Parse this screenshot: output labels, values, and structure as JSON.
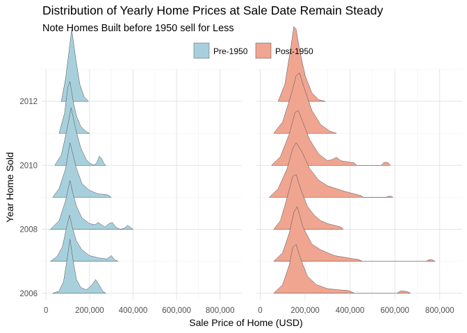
{
  "chart_data": {
    "type": "ridgeline",
    "title": "Distribution of Yearly Home Prices at Sale Date Remain Steady",
    "subtitle": "Note Homes Built before 1950 sell for Less",
    "xlabel": "Sale Price of Home (USD)",
    "ylabel": "Year Home Sold",
    "legend": {
      "position": "top",
      "title": ""
    },
    "facets": [
      "Pre-1950",
      "Post-1950"
    ],
    "x_ticks": [
      0,
      200000,
      400000,
      600000,
      800000
    ],
    "x_tick_labels": [
      "0",
      "200,000",
      "400,000",
      "600,000",
      "800,000"
    ],
    "xlim": [
      -20000,
      900000
    ],
    "y_ticks": [
      2006,
      2008,
      2010,
      2012
    ],
    "ylim": [
      2005.8,
      2013.0
    ],
    "grid": true,
    "colors": {
      "Pre-1950": "#A7D0DC",
      "Post-1950": "#F0A591",
      "outline": "#4d4d4d"
    },
    "series": [
      {
        "name": "Pre-1950",
        "distributions": [
          {
            "year": 2006,
            "x": [
              30000,
              60000,
              80000,
              95000,
              110000,
              125000,
              140000,
              160000,
              185000,
              210000,
              228000,
              245000,
              260000,
              275000
            ],
            "d": [
              0,
              0.04,
              0.2,
              0.55,
              0.94,
              0.55,
              0.24,
              0.1,
              0.06,
              0.14,
              0.24,
              0.14,
              0.04,
              0
            ]
          },
          {
            "year": 2007,
            "x": [
              20000,
              50000,
              75000,
              95000,
              108000,
              120000,
              140000,
              165000,
              200000,
              240000,
              280000,
              300000,
              315000,
              330000
            ],
            "d": [
              0,
              0.08,
              0.25,
              0.6,
              0.8,
              0.6,
              0.35,
              0.2,
              0.1,
              0.06,
              0.04,
              0.1,
              0.03,
              0
            ]
          },
          {
            "year": 2008,
            "x": [
              20000,
              60000,
              90000,
              110000,
              125000,
              140000,
              165000,
              200000,
              225000,
              240000,
              255000,
              270000,
              290000,
              305000,
              320000,
              340000,
              360000,
              375000,
              390000,
              400000
            ],
            "d": [
              0,
              0.15,
              0.5,
              0.85,
              0.6,
              0.4,
              0.2,
              0.1,
              0.08,
              0.12,
              0.08,
              0.04,
              0.1,
              0.12,
              0.04,
              0,
              0.02,
              0.07,
              0.03,
              0
            ]
          },
          {
            "year": 2009,
            "x": [
              30000,
              60000,
              90000,
              110000,
              125000,
              140000,
              165000,
              200000,
              240000,
              270000,
              285000,
              300000
            ],
            "d": [
              0,
              0.15,
              0.5,
              0.95,
              0.72,
              0.5,
              0.24,
              0.12,
              0.06,
              0.05,
              0.04,
              0
            ]
          },
          {
            "year": 2010,
            "x": [
              40000,
              70000,
              95000,
              115000,
              135000,
              160000,
              185000,
              200000,
              215000,
              225000,
              235000,
              245000,
              255000,
              265000,
              275000
            ],
            "d": [
              0,
              0.18,
              0.6,
              1.0,
              0.65,
              0.3,
              0.1,
              0.04,
              0.01,
              0.01,
              0.06,
              0.16,
              0.12,
              0.04,
              0
            ]
          },
          {
            "year": 2011,
            "x": [
              60000,
              85000,
              100000,
              110000,
              125000,
              140000,
              160000,
              185000,
              200000
            ],
            "d": [
              0,
              0.35,
              0.8,
              0.9,
              0.55,
              0.3,
              0.12,
              0.03,
              0
            ]
          },
          {
            "year": 2012,
            "x": [
              70000,
              90000,
              105000,
              118000,
              125000,
              138000,
              155000,
              175000,
              195000
            ],
            "d": [
              0,
              0.4,
              0.85,
              1.25,
              1.05,
              0.7,
              0.3,
              0.08,
              0
            ]
          }
        ]
      },
      {
        "name": "Post-1950",
        "distributions": [
          {
            "year": 2006,
            "x": [
              60000,
              100000,
              130000,
              145000,
              160000,
              180000,
              210000,
              250000,
              300000,
              350000,
              390000,
              405000,
              420000,
              610000,
              625000,
              640000,
              655000,
              670000
            ],
            "d": [
              0,
              0.15,
              0.5,
              0.8,
              0.85,
              0.6,
              0.3,
              0.15,
              0.08,
              0.06,
              0.05,
              0.03,
              0,
              0,
              0.04,
              0.04,
              0.03,
              0
            ]
          },
          {
            "year": 2007,
            "x": [
              60000,
              100000,
              130000,
              150000,
              165000,
              190000,
              230000,
              270000,
              300000,
              330000,
              360000,
              390000,
              420000,
              440000,
              455000,
              740000,
              750000,
              760000,
              770000,
              780000
            ],
            "d": [
              0,
              0.15,
              0.5,
              0.85,
              0.95,
              0.6,
              0.3,
              0.2,
              0.15,
              0.1,
              0.08,
              0.06,
              0.04,
              0.03,
              0,
              0,
              0.025,
              0.03,
              0.02,
              0
            ]
          },
          {
            "year": 2008,
            "x": [
              60000,
              90000,
              120000,
              145000,
              160000,
              180000,
              210000,
              240000,
              270000,
              300000,
              320000,
              340000,
              360000,
              370000
            ],
            "d": [
              0,
              0.15,
              0.55,
              0.92,
              0.95,
              0.7,
              0.4,
              0.25,
              0.15,
              0.1,
              0.08,
              0.06,
              0.04,
              0
            ]
          },
          {
            "year": 2009,
            "x": [
              40000,
              80000,
              120000,
              145000,
              160000,
              185000,
              220000,
              260000,
              300000,
              340000,
              380000,
              420000,
              450000,
              460000,
              560000,
              568000,
              576000,
              584000,
              592000
            ],
            "d": [
              0,
              0.15,
              0.5,
              0.85,
              0.95,
              0.8,
              0.5,
              0.3,
              0.2,
              0.15,
              0.1,
              0.06,
              0.03,
              0,
              0,
              0.015,
              0.02,
              0.015,
              0
            ]
          },
          {
            "year": 2010,
            "x": [
              50000,
              90000,
              130000,
              155000,
              170000,
              190000,
              220000,
              260000,
              300000,
              320000,
              340000,
              360000,
              390000,
              420000,
              430000,
              540000,
              550000,
              560000,
              570000,
              580000
            ],
            "d": [
              0,
              0.15,
              0.55,
              0.92,
              0.95,
              0.75,
              0.45,
              0.2,
              0.08,
              0.1,
              0.14,
              0.08,
              0.06,
              0.04,
              0,
              0,
              0.045,
              0.055,
              0.045,
              0
            ]
          },
          {
            "year": 2011,
            "x": [
              60000,
              100000,
              140000,
              160000,
              175000,
              195000,
              230000,
              270000,
              310000,
              340000
            ],
            "d": [
              0,
              0.2,
              0.7,
              1.0,
              1.05,
              0.8,
              0.4,
              0.15,
              0.04,
              0
            ]
          },
          {
            "year": 2012,
            "x": [
              80000,
              110000,
              135000,
              150000,
              160000,
              175000,
              200000,
              230000,
              260000,
              290000
            ],
            "d": [
              0,
              0.3,
              0.9,
              1.3,
              1.25,
              0.9,
              0.45,
              0.15,
              0.03,
              0
            ]
          }
        ]
      }
    ]
  }
}
